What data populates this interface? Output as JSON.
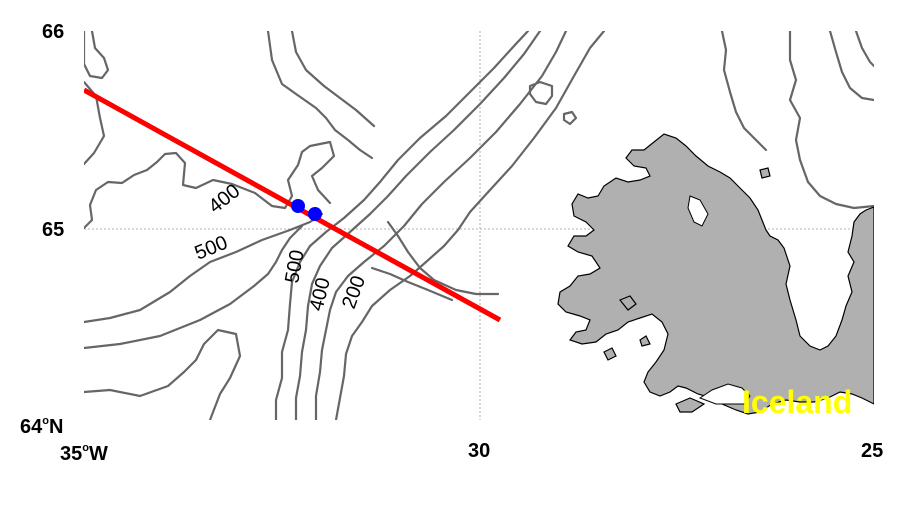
{
  "map": {
    "lon_range": [
      -35,
      -25
    ],
    "lat_range": [
      64,
      66
    ],
    "grid": true,
    "lat_ticks": [
      {
        "value": 66,
        "label": "66"
      },
      {
        "value": 65,
        "label": "65"
      },
      {
        "value": 64,
        "label": "64",
        "suffix": "N"
      }
    ],
    "lon_ticks": [
      {
        "value": -35,
        "label": "35",
        "suffix": "W"
      },
      {
        "value": -30,
        "label": "30"
      },
      {
        "value": -25,
        "label": "25"
      }
    ],
    "degree_symbol": "o",
    "land_label": "Iceland",
    "land_label_color": "#ffff00",
    "land_color": "#b0b0b0",
    "contour_color": "#666666",
    "contour_labels": [
      "400",
      "500",
      "500",
      "400",
      "200"
    ],
    "section_line": {
      "color": "#ff0000"
    },
    "stations": {
      "color": "#0000ff",
      "count": 2
    }
  }
}
